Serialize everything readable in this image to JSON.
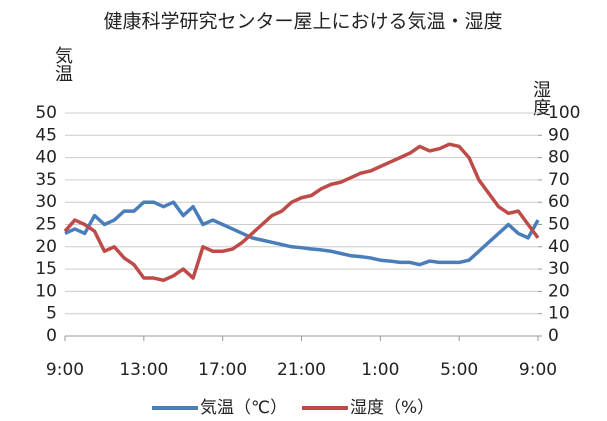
{
  "chart_data": {
    "type": "line",
    "title": "健康科学研究センター屋上における気温・湿度",
    "y_label": "気温",
    "y2_label": "湿度",
    "x": [
      0,
      0.5,
      1,
      1.5,
      2,
      2.5,
      3,
      3.5,
      4,
      4.5,
      5,
      5.5,
      6,
      6.5,
      7,
      7.5,
      8,
      8.5,
      9,
      9.5,
      10,
      10.5,
      11,
      11.5,
      12,
      12.5,
      13,
      13.5,
      14,
      14.5,
      15,
      15.5,
      16,
      16.5,
      17,
      17.5,
      18,
      18.5,
      19,
      19.5,
      20,
      20.5,
      21,
      21.5,
      22,
      22.5,
      23,
      23.5,
      24
    ],
    "xlim": [
      0,
      24
    ],
    "xticks": [
      {
        "value": 0,
        "label": "9:00"
      },
      {
        "value": 4,
        "label": "13:00"
      },
      {
        "value": 8,
        "label": "17:00"
      },
      {
        "value": 12,
        "label": "21:00"
      },
      {
        "value": 16,
        "label": "1:00"
      },
      {
        "value": 20,
        "label": "5:00"
      },
      {
        "value": 24,
        "label": "9:00"
      }
    ],
    "ylim": [
      0,
      50
    ],
    "yticks": [
      0,
      5,
      10,
      15,
      20,
      25,
      30,
      35,
      40,
      45,
      50
    ],
    "y2lim": [
      0,
      100
    ],
    "y2ticks": [
      0,
      10,
      20,
      30,
      40,
      50,
      60,
      70,
      80,
      90,
      100
    ],
    "grid": true,
    "legend": "bottom",
    "series": [
      {
        "name": "気温（℃）",
        "color": "#4a7ebb",
        "values": [
          23,
          24,
          23,
          27,
          25,
          26,
          28,
          28,
          30,
          30,
          29,
          30,
          27,
          29,
          25,
          26,
          25,
          24,
          23,
          22,
          21.5,
          21,
          20.5,
          20,
          19.8,
          19.5,
          19.3,
          19,
          18.5,
          18,
          17.8,
          17.5,
          17,
          16.8,
          16.5,
          16.5,
          16,
          16.8,
          16.5,
          16.5,
          16.5,
          17,
          19,
          21,
          23,
          25,
          23,
          22,
          26
        ]
      },
      {
        "name": "湿度（%）",
        "color": "#be4b48",
        "axis": "y2",
        "values": [
          47,
          52,
          50,
          47,
          38,
          40,
          35,
          32,
          26,
          26,
          25,
          27,
          30,
          26,
          40,
          38,
          38,
          39,
          42,
          46,
          50,
          54,
          56,
          60,
          62,
          63,
          66,
          68,
          69,
          71,
          73,
          74,
          76,
          78,
          80,
          82,
          85,
          83,
          84,
          86,
          85,
          80,
          70,
          64,
          58,
          55,
          56,
          50,
          44
        ]
      }
    ]
  }
}
